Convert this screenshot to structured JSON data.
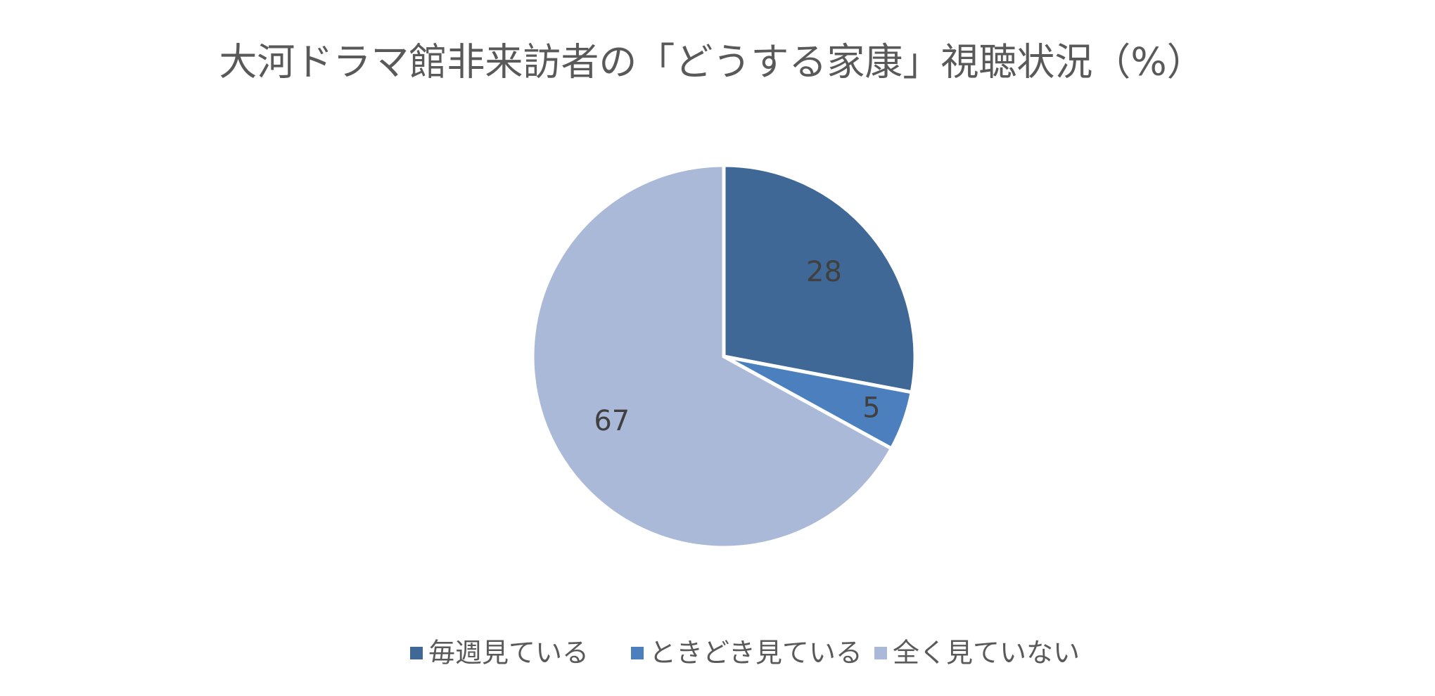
{
  "chart_data": {
    "type": "pie",
    "title": "大河ドラマ館非来訪者の「どうする家康」視聴状況（%）",
    "categories": [
      "毎週見ている",
      "ときどき見ている",
      "全く見ていない"
    ],
    "values": [
      28,
      5,
      67
    ],
    "colors": [
      "#3f6897",
      "#4b7fbd",
      "#aab9d7"
    ],
    "legend": "bottom"
  }
}
